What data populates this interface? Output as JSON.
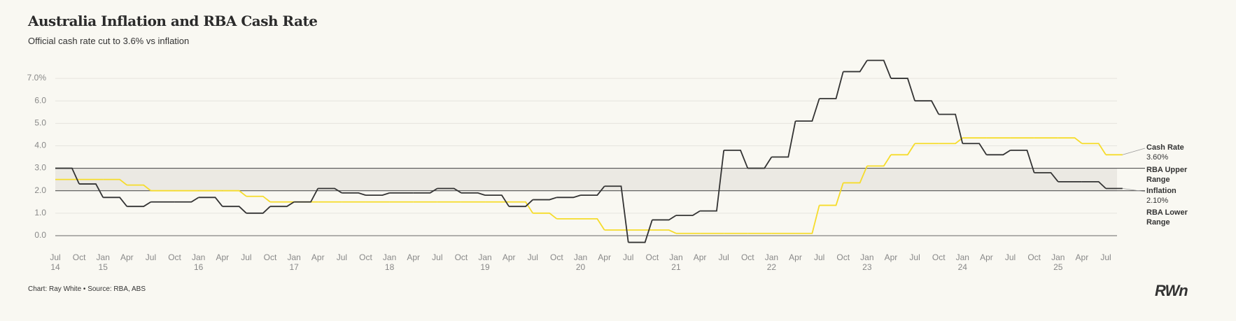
{
  "chart_data": {
    "type": "line",
    "title": "Australia Inflation and RBA Cash Rate",
    "subtitle": "Official cash rate cut to 3.6% vs inflation",
    "source": "Chart: Ray White • Source: RBA, ABS",
    "logo": "RWn",
    "categories": [
      "Jul",
      "Oct",
      "Jan",
      "Apr",
      "Jul",
      "Oct",
      "Jan",
      "Apr",
      "Jul",
      "Oct",
      "Jan",
      "Apr",
      "Jul",
      "Oct",
      "Jan",
      "Apr",
      "Jul",
      "Oct",
      "Jan",
      "Apr",
      "Jul",
      "Oct",
      "Jan",
      "Apr",
      "Jul",
      "Oct",
      "Jan",
      "Apr",
      "Jul",
      "Oct",
      "Jan",
      "Apr",
      "Jul",
      "Oct",
      "Jan",
      "Apr",
      "Jul",
      "Oct",
      "Jan",
      "Apr",
      "Jul",
      "Oct",
      "Jan",
      "Apr",
      "Jul"
    ],
    "category_years": [
      "14",
      null,
      "15",
      null,
      null,
      null,
      "16",
      null,
      null,
      null,
      "17",
      null,
      null,
      null,
      "18",
      null,
      null,
      null,
      "19",
      null,
      null,
      null,
      "20",
      null,
      null,
      null,
      "21",
      null,
      null,
      null,
      "22",
      null,
      null,
      null,
      "23",
      null,
      null,
      null,
      "24",
      null,
      null,
      null,
      "25",
      null,
      null
    ],
    "series": [
      {
        "name": "Cash Rate",
        "color": "#f6dc2b",
        "values": [
          2.5,
          2.5,
          2.5,
          2.25,
          2.0,
          2.0,
          2.0,
          2.0,
          1.75,
          1.5,
          1.5,
          1.5,
          1.5,
          1.5,
          1.5,
          1.5,
          1.5,
          1.5,
          1.5,
          1.5,
          1.0,
          0.75,
          0.75,
          0.25,
          0.25,
          0.25,
          0.1,
          0.1,
          0.1,
          0.1,
          0.1,
          0.1,
          1.35,
          2.35,
          3.1,
          3.6,
          4.1,
          4.1,
          4.35,
          4.35,
          4.35,
          4.35,
          4.35,
          4.1,
          3.6
        ],
        "last_value_label": "3.60%"
      },
      {
        "name": "Inflation",
        "color": "#333333",
        "values": [
          3.0,
          2.3,
          1.7,
          1.3,
          1.5,
          1.5,
          1.7,
          1.3,
          1.0,
          1.3,
          1.5,
          2.1,
          1.9,
          1.8,
          1.9,
          1.9,
          2.1,
          1.9,
          1.8,
          1.3,
          1.6,
          1.7,
          1.8,
          2.2,
          -0.3,
          0.7,
          0.9,
          1.1,
          3.8,
          3.0,
          3.5,
          5.1,
          6.1,
          7.3,
          7.8,
          7.0,
          6.0,
          5.4,
          4.1,
          3.6,
          3.8,
          2.8,
          2.4,
          2.4,
          2.1
        ],
        "last_value_label": "2.10%"
      }
    ],
    "band": {
      "lower": 2,
      "upper": 3,
      "upper_label": "RBA Upper Range",
      "lower_label": "RBA Lower Range",
      "color": "#ebe9e3"
    },
    "ylim": [
      -0.5,
      7.5
    ],
    "yticks": [
      {
        "value": 0,
        "label": "0.0"
      },
      {
        "value": 1,
        "label": "1.0"
      },
      {
        "value": 2,
        "label": "2.0"
      },
      {
        "value": 3,
        "label": "3.0"
      },
      {
        "value": 4,
        "label": "4.0"
      },
      {
        "value": 5,
        "label": "5.0"
      },
      {
        "value": 6,
        "label": "6.0"
      },
      {
        "value": 7,
        "label": "7.0%"
      }
    ],
    "grid": true
  }
}
